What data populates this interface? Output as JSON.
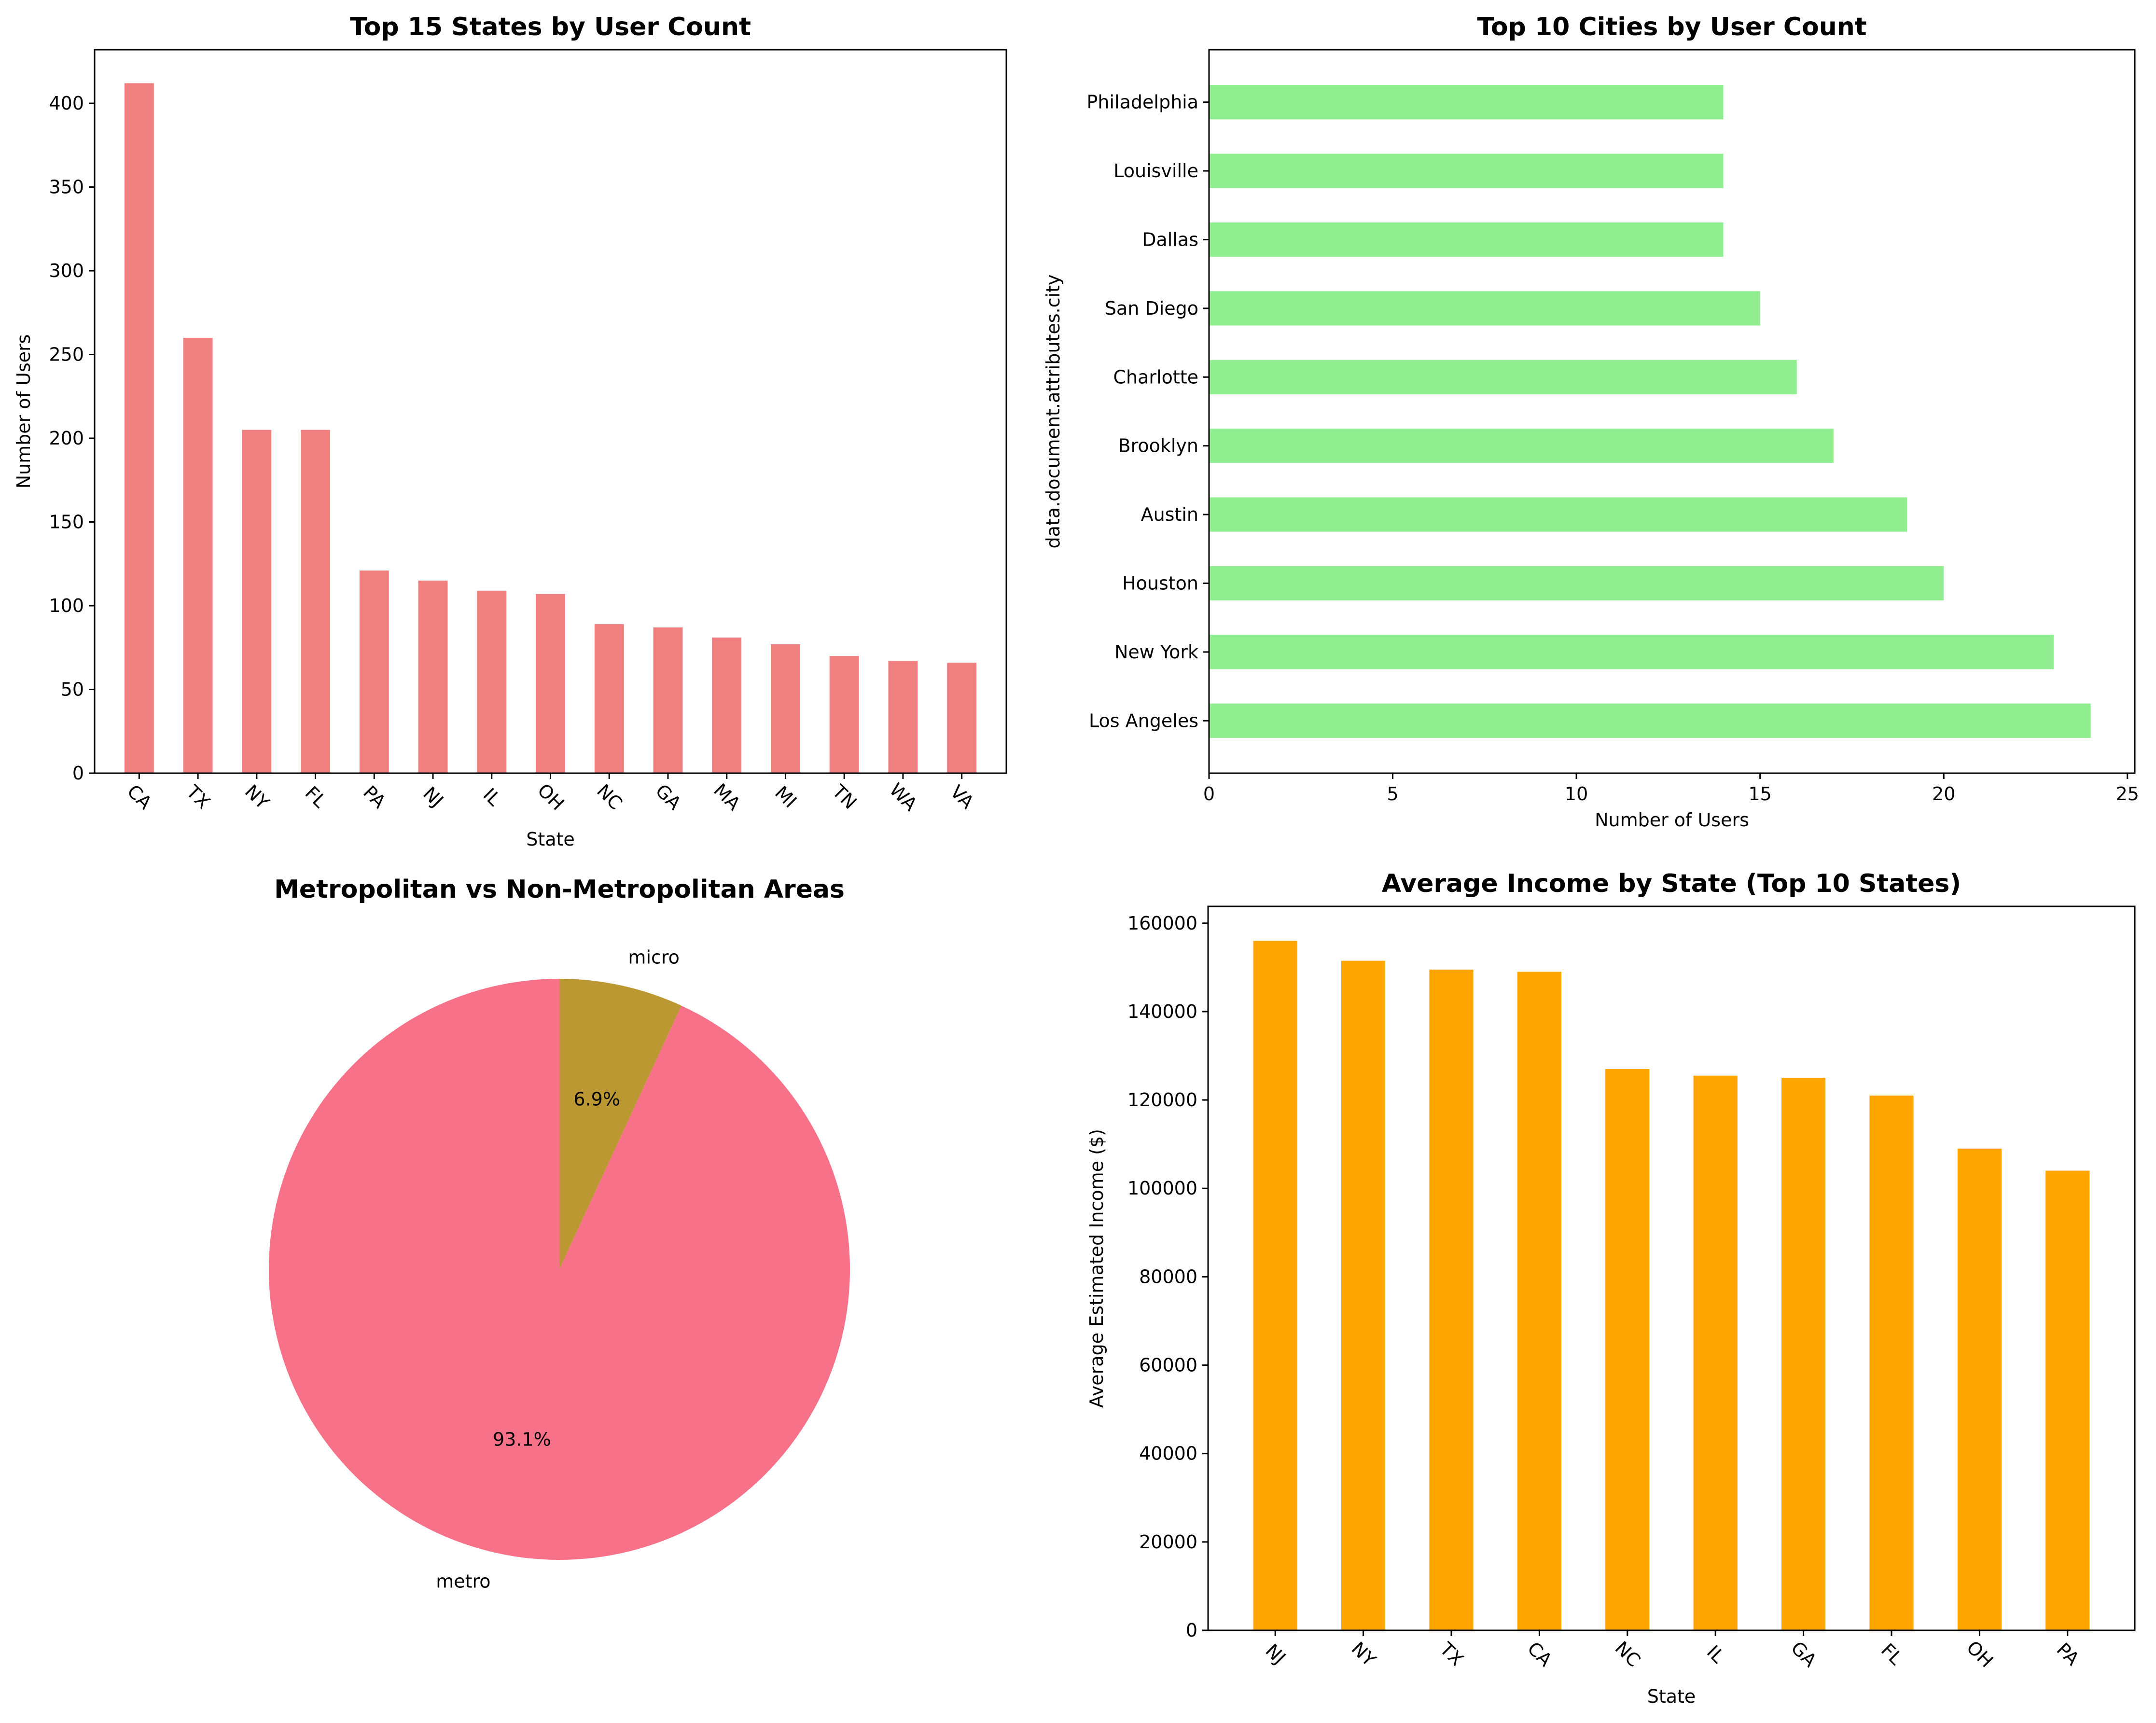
{
  "chart_data": [
    {
      "type": "bar",
      "title": "Top 15 States by User Count",
      "xlabel": "State",
      "ylabel": "Number of Users",
      "orientation": "vertical",
      "color": "#f08080",
      "categories": [
        "CA",
        "TX",
        "NY",
        "FL",
        "PA",
        "NJ",
        "IL",
        "OH",
        "NC",
        "GA",
        "MA",
        "MI",
        "TN",
        "WA",
        "VA"
      ],
      "values": [
        412,
        260,
        205,
        205,
        121,
        115,
        109,
        107,
        89,
        87,
        81,
        77,
        70,
        67,
        66
      ],
      "ylim": [
        0,
        432
      ],
      "yticks": [
        0,
        50,
        100,
        150,
        200,
        250,
        300,
        350,
        400
      ],
      "ytick_labels": [
        "0",
        "50",
        "100",
        "150",
        "200",
        "250",
        "300",
        "350",
        "400"
      ],
      "grid": false
    },
    {
      "type": "bar",
      "title": "Top 10 Cities by User Count",
      "xlabel": "Number of Users",
      "ylabel": "data.document.attributes.city",
      "orientation": "horizontal",
      "color": "#90ee90",
      "categories": [
        "Los Angeles",
        "New York",
        "Houston",
        "Austin",
        "Brooklyn",
        "Charlotte",
        "San Diego",
        "Dallas",
        "Louisville",
        "Philadelphia"
      ],
      "values": [
        24,
        23,
        20,
        19,
        17,
        16,
        15,
        14,
        14,
        14
      ],
      "xlim": [
        0,
        25.2
      ],
      "xticks": [
        0,
        5,
        10,
        15,
        20,
        25
      ],
      "xtick_labels": [
        "0",
        "5",
        "10",
        "15",
        "20",
        "25"
      ],
      "grid": false
    },
    {
      "type": "pie",
      "title": "Metropolitan vs Non-Metropolitan Areas",
      "slices": [
        {
          "label": "metro",
          "value": 93.1,
          "pct_label": "93.1%",
          "color": "#f77189"
        },
        {
          "label": "micro",
          "value": 6.9,
          "pct_label": "6.9%",
          "color": "#bb9832"
        }
      ],
      "start_angle": 90
    },
    {
      "type": "bar",
      "title": "Average Income by State (Top 10 States)",
      "xlabel": "State",
      "ylabel": "Average Estimated Income ($)",
      "orientation": "vertical",
      "color": "#ffa500",
      "categories": [
        "NJ",
        "NY",
        "TX",
        "CA",
        "NC",
        "IL",
        "GA",
        "FL",
        "OH",
        "PA"
      ],
      "values": [
        156000,
        151500,
        149500,
        149000,
        127000,
        125500,
        125000,
        121000,
        109000,
        104000
      ],
      "ylim": [
        0,
        163800
      ],
      "yticks": [
        0,
        20000,
        40000,
        60000,
        80000,
        100000,
        120000,
        140000,
        160000
      ],
      "ytick_labels": [
        "0",
        "20000",
        "40000",
        "60000",
        "80000",
        "100000",
        "120000",
        "140000",
        "160000"
      ],
      "grid": false
    }
  ]
}
